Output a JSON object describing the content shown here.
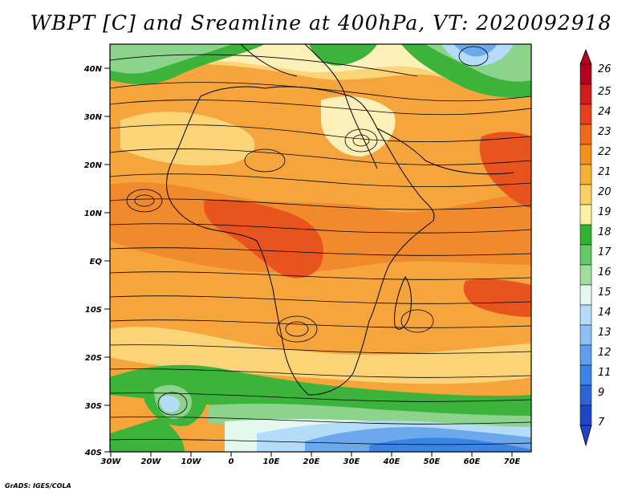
{
  "title": "WBPT [C] and Sreamline at 400hPa, VT: 2020092918",
  "credit": "GrADS: IGES/COLA",
  "map": {
    "lat_labels": [
      "40N",
      "30N",
      "20N",
      "10N",
      "EQ",
      "10S",
      "20S",
      "30S",
      "40S"
    ],
    "lon_labels": [
      "30W",
      "20W",
      "10W",
      "0",
      "10E",
      "20E",
      "30E",
      "40E",
      "50E",
      "60E",
      "70E"
    ]
  },
  "colorbar": {
    "levels": [
      "26",
      "25",
      "24",
      "23",
      "22",
      "21",
      "20",
      "19",
      "18",
      "17",
      "16",
      "15",
      "14",
      "13",
      "12",
      "11",
      "9",
      "7"
    ],
    "colors": [
      "#b4001e",
      "#d01e1e",
      "#e8401e",
      "#f06a1e",
      "#f5901e",
      "#f8b030",
      "#fad060",
      "#fdf0a0",
      "#30b430",
      "#64c864",
      "#a0dc9c",
      "#e4f8f0",
      "#b4dcf8",
      "#8cc0f4",
      "#5ca0ec",
      "#3c84e4",
      "#2c64d8",
      "#1e46c8"
    ]
  },
  "field_colors": {
    "orange_dark": "#e8541e",
    "orange": "#f08a2c",
    "orange_light": "#f5a53c",
    "yellow": "#fbd478",
    "cream": "#fcf0b8",
    "green": "#3cb43c",
    "green_light": "#8cd48c",
    "blue_light": "#b4dcf8",
    "blue": "#6ca8ec"
  }
}
